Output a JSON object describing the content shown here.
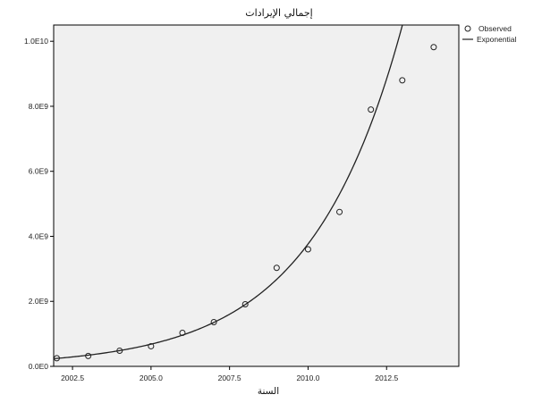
{
  "chart_data": {
    "type": "scatter",
    "title": "إجمالي الإيرادات",
    "xlabel": "السنة",
    "ylabel": "",
    "xlim": [
      2001.9,
      2014.8
    ],
    "ylim": [
      0,
      10500000000
    ],
    "x_ticks": [
      2002.5,
      2005.0,
      2007.5,
      2010.0,
      2012.5
    ],
    "x_tick_labels": [
      "2002.5",
      "2005.0",
      "2007.5",
      "2010.0",
      "2012.5"
    ],
    "y_ticks": [
      0,
      2000000000,
      4000000000,
      6000000000,
      8000000000,
      10000000000
    ],
    "y_tick_labels": [
      "0.0E0",
      "2.0E9",
      "4.0E9",
      "6.0E9",
      "8.0E9",
      "1.0E10"
    ],
    "grid": false,
    "legend_position": "right",
    "plot_background": "#f0f0f0",
    "series": [
      {
        "name": "Observed",
        "kind": "points",
        "marker": "circle-open",
        "x": [
          2002,
          2003,
          2004,
          2005,
          2006,
          2007,
          2008,
          2009,
          2010,
          2011,
          2012,
          2013,
          2014
        ],
        "y": [
          250000000,
          320000000,
          480000000,
          620000000,
          1030000000,
          1360000000,
          1910000000,
          3030000000,
          3600000000,
          4750000000,
          7900000000,
          8800000000,
          9820000000
        ]
      },
      {
        "name": "Exponential",
        "kind": "line",
        "color": "#222222",
        "fit": {
          "form": "exponential",
          "a_at_2002": 245000000,
          "rate": 0.3415
        }
      }
    ]
  }
}
